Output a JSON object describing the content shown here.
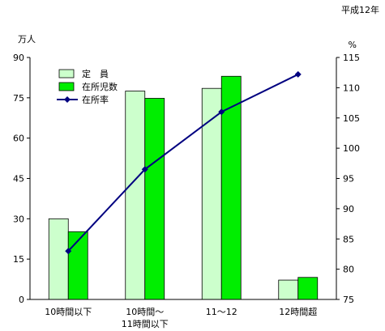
{
  "chart_data": {
    "type": "bar",
    "title": "",
    "note": "平成12年",
    "categories": [
      [
        "10時間以下"
      ],
      [
        "10時間〜",
        "11時間以下"
      ],
      [
        "11〜12"
      ],
      [
        "12時間超"
      ]
    ],
    "series": [
      {
        "name": "定　員",
        "type": "bar",
        "axis": "left",
        "color": "#ccffcc",
        "values": [
          30,
          77.5,
          78.5,
          7.2
        ]
      },
      {
        "name": "在所児数",
        "type": "bar",
        "axis": "left",
        "color": "#00ee00",
        "values": [
          25.2,
          74.8,
          83,
          8.2
        ]
      },
      {
        "name": "在所率",
        "type": "line",
        "axis": "right",
        "color": "#000080",
        "marker": "diamond-icon",
        "values": [
          83,
          96.5,
          106,
          112.2
        ]
      }
    ],
    "left_axis": {
      "unit": "万人",
      "min": 0,
      "max": 90,
      "ticks": [
        0,
        15,
        30,
        45,
        60,
        75,
        90
      ]
    },
    "right_axis": {
      "unit": "%",
      "min": 75,
      "max": 115,
      "ticks": [
        75,
        80,
        85,
        90,
        95,
        100,
        105,
        110,
        115
      ]
    },
    "grid": false,
    "legend_position": "top-left"
  }
}
